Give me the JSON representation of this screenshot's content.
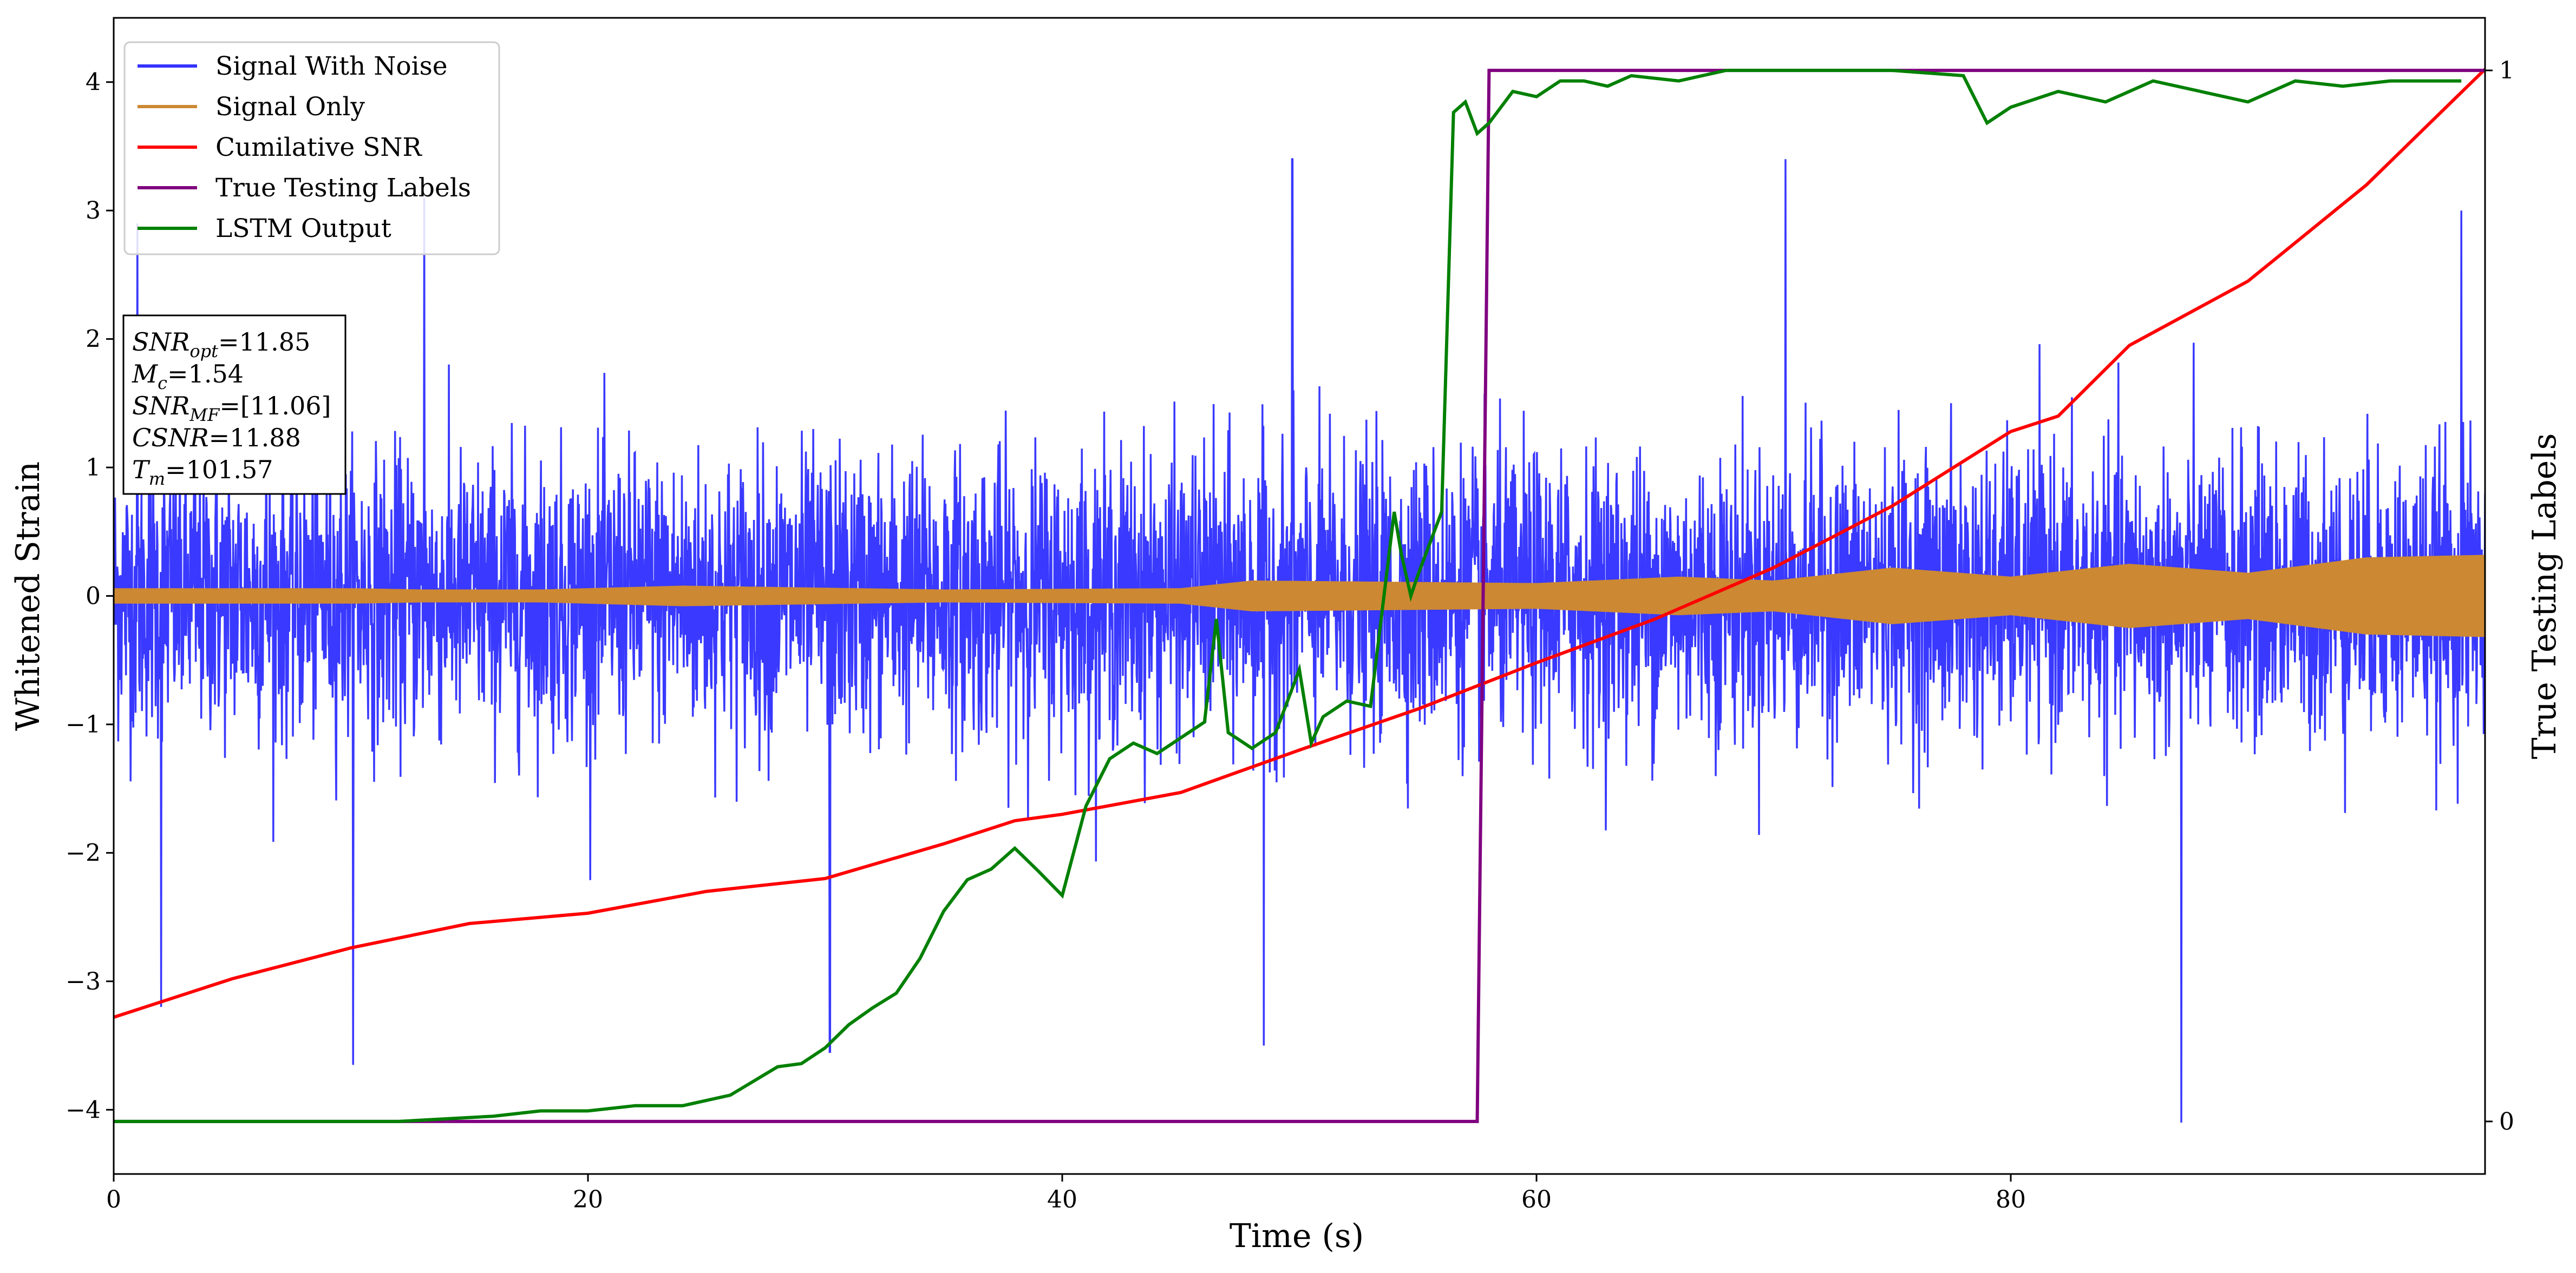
{
  "chart_data": {
    "type": "line",
    "xlabel": "Time (s)",
    "ylabel": "Whitened Strain",
    "y2label": "True Testing Labels",
    "xlim": [
      0,
      100
    ],
    "ylim": [
      -4.5,
      4.5
    ],
    "y2lim": [
      -0.05,
      1.05
    ],
    "xticks": [
      0,
      20,
      40,
      60,
      80
    ],
    "yticks": [
      -4,
      -3,
      -2,
      -1,
      0,
      1,
      2,
      3,
      4
    ],
    "y2ticks": [
      0,
      1
    ],
    "grid": false,
    "legend_position": "top-left",
    "series": [
      {
        "name": "Signal With Noise",
        "axis": "left",
        "color": "#3333ff",
        "style": "noise",
        "typical_amplitude": 0.55,
        "peak_amplitude_range": [
          -4.1,
          3.4
        ],
        "notable_peaks": [
          [
            1.0,
            2.9
          ],
          [
            2.0,
            -3.2
          ],
          [
            10.1,
            -3.65
          ],
          [
            13.1,
            3.1
          ],
          [
            30.2,
            -3.55
          ],
          [
            48.5,
            -3.5
          ],
          [
            49.7,
            3.4
          ],
          [
            70.5,
            3.4
          ],
          [
            87.2,
            -4.1
          ],
          [
            99.0,
            3.0
          ]
        ]
      },
      {
        "name": "Signal Only",
        "axis": "left",
        "color": "#cc8833",
        "style": "envelope",
        "x": [
          0,
          10,
          13,
          18,
          24,
          35,
          45,
          48,
          60,
          66,
          70,
          75,
          80,
          85,
          90,
          95,
          100
        ],
        "envelope": [
          0.06,
          0.06,
          0.05,
          0.05,
          0.08,
          0.05,
          0.06,
          0.12,
          0.1,
          0.15,
          0.12,
          0.22,
          0.15,
          0.25,
          0.18,
          0.3,
          0.32
        ]
      },
      {
        "name": "Cumilative SNR",
        "axis": "left",
        "color": "#ff0000",
        "x": [
          0,
          5,
          10,
          15,
          20,
          25,
          30,
          35,
          38,
          40,
          45,
          50,
          55,
          60,
          65,
          70,
          75,
          80,
          82,
          85,
          90,
          95,
          100
        ],
        "values": [
          -3.28,
          -2.98,
          -2.74,
          -2.55,
          -2.47,
          -2.3,
          -2.2,
          -1.93,
          -1.75,
          -1.7,
          -1.53,
          -1.2,
          -0.88,
          -0.52,
          -0.18,
          0.22,
          0.7,
          1.28,
          1.4,
          1.95,
          2.45,
          3.2,
          4.1
        ]
      },
      {
        "name": "True Testing Labels",
        "axis": "right",
        "color": "#800080",
        "x": [
          0,
          57.5,
          58.0,
          100
        ],
        "values": [
          0,
          0,
          1,
          1
        ]
      },
      {
        "name": "LSTM Output",
        "axis": "right",
        "color": "#008000",
        "x": [
          0,
          12,
          16,
          18,
          19,
          20,
          22,
          24,
          26,
          28,
          29,
          30,
          31,
          32,
          33,
          34,
          35,
          36,
          37,
          38,
          39,
          40,
          41,
          42,
          43,
          44,
          45,
          46,
          46.5,
          47,
          48,
          49,
          50,
          50.5,
          51,
          52,
          53,
          54,
          54.3,
          54.7,
          55,
          56,
          56.5,
          57,
          57.5,
          58,
          59,
          60,
          61,
          62,
          63,
          64,
          66,
          68,
          70,
          72,
          75,
          78,
          79,
          80,
          82,
          84,
          86,
          88,
          90,
          92,
          94,
          96,
          99
        ],
        "values": [
          0.0,
          0.0,
          0.005,
          0.01,
          0.01,
          0.01,
          0.015,
          0.015,
          0.025,
          0.052,
          0.055,
          0.07,
          0.092,
          0.108,
          0.122,
          0.155,
          0.2,
          0.23,
          0.24,
          0.26,
          0.238,
          0.215,
          0.3,
          0.345,
          0.36,
          0.35,
          0.365,
          0.38,
          0.478,
          0.37,
          0.355,
          0.37,
          0.43,
          0.36,
          0.385,
          0.4,
          0.395,
          0.58,
          0.54,
          0.5,
          0.52,
          0.58,
          0.96,
          0.97,
          0.94,
          0.95,
          0.98,
          0.975,
          0.99,
          0.99,
          0.985,
          0.995,
          0.99,
          1.0,
          1.0,
          1.0,
          1.0,
          0.995,
          0.95,
          0.965,
          0.98,
          0.97,
          0.99,
          0.98,
          0.97,
          0.99,
          0.985,
          0.99,
          0.99
        ]
      }
    ],
    "annotation_box": {
      "position": "upper-left",
      "lines": [
        {
          "base": "SNR",
          "sub": "opt",
          "text": "=11.85"
        },
        {
          "base": "M",
          "sub": "c",
          "text": "=1.54"
        },
        {
          "base": "SNR",
          "sub": "MF",
          "text": "=[11.06]"
        },
        {
          "base": "CSNR",
          "sub": "",
          "text": "=11.88"
        },
        {
          "base": "T",
          "sub": "m",
          "text": "=101.57"
        }
      ]
    }
  }
}
